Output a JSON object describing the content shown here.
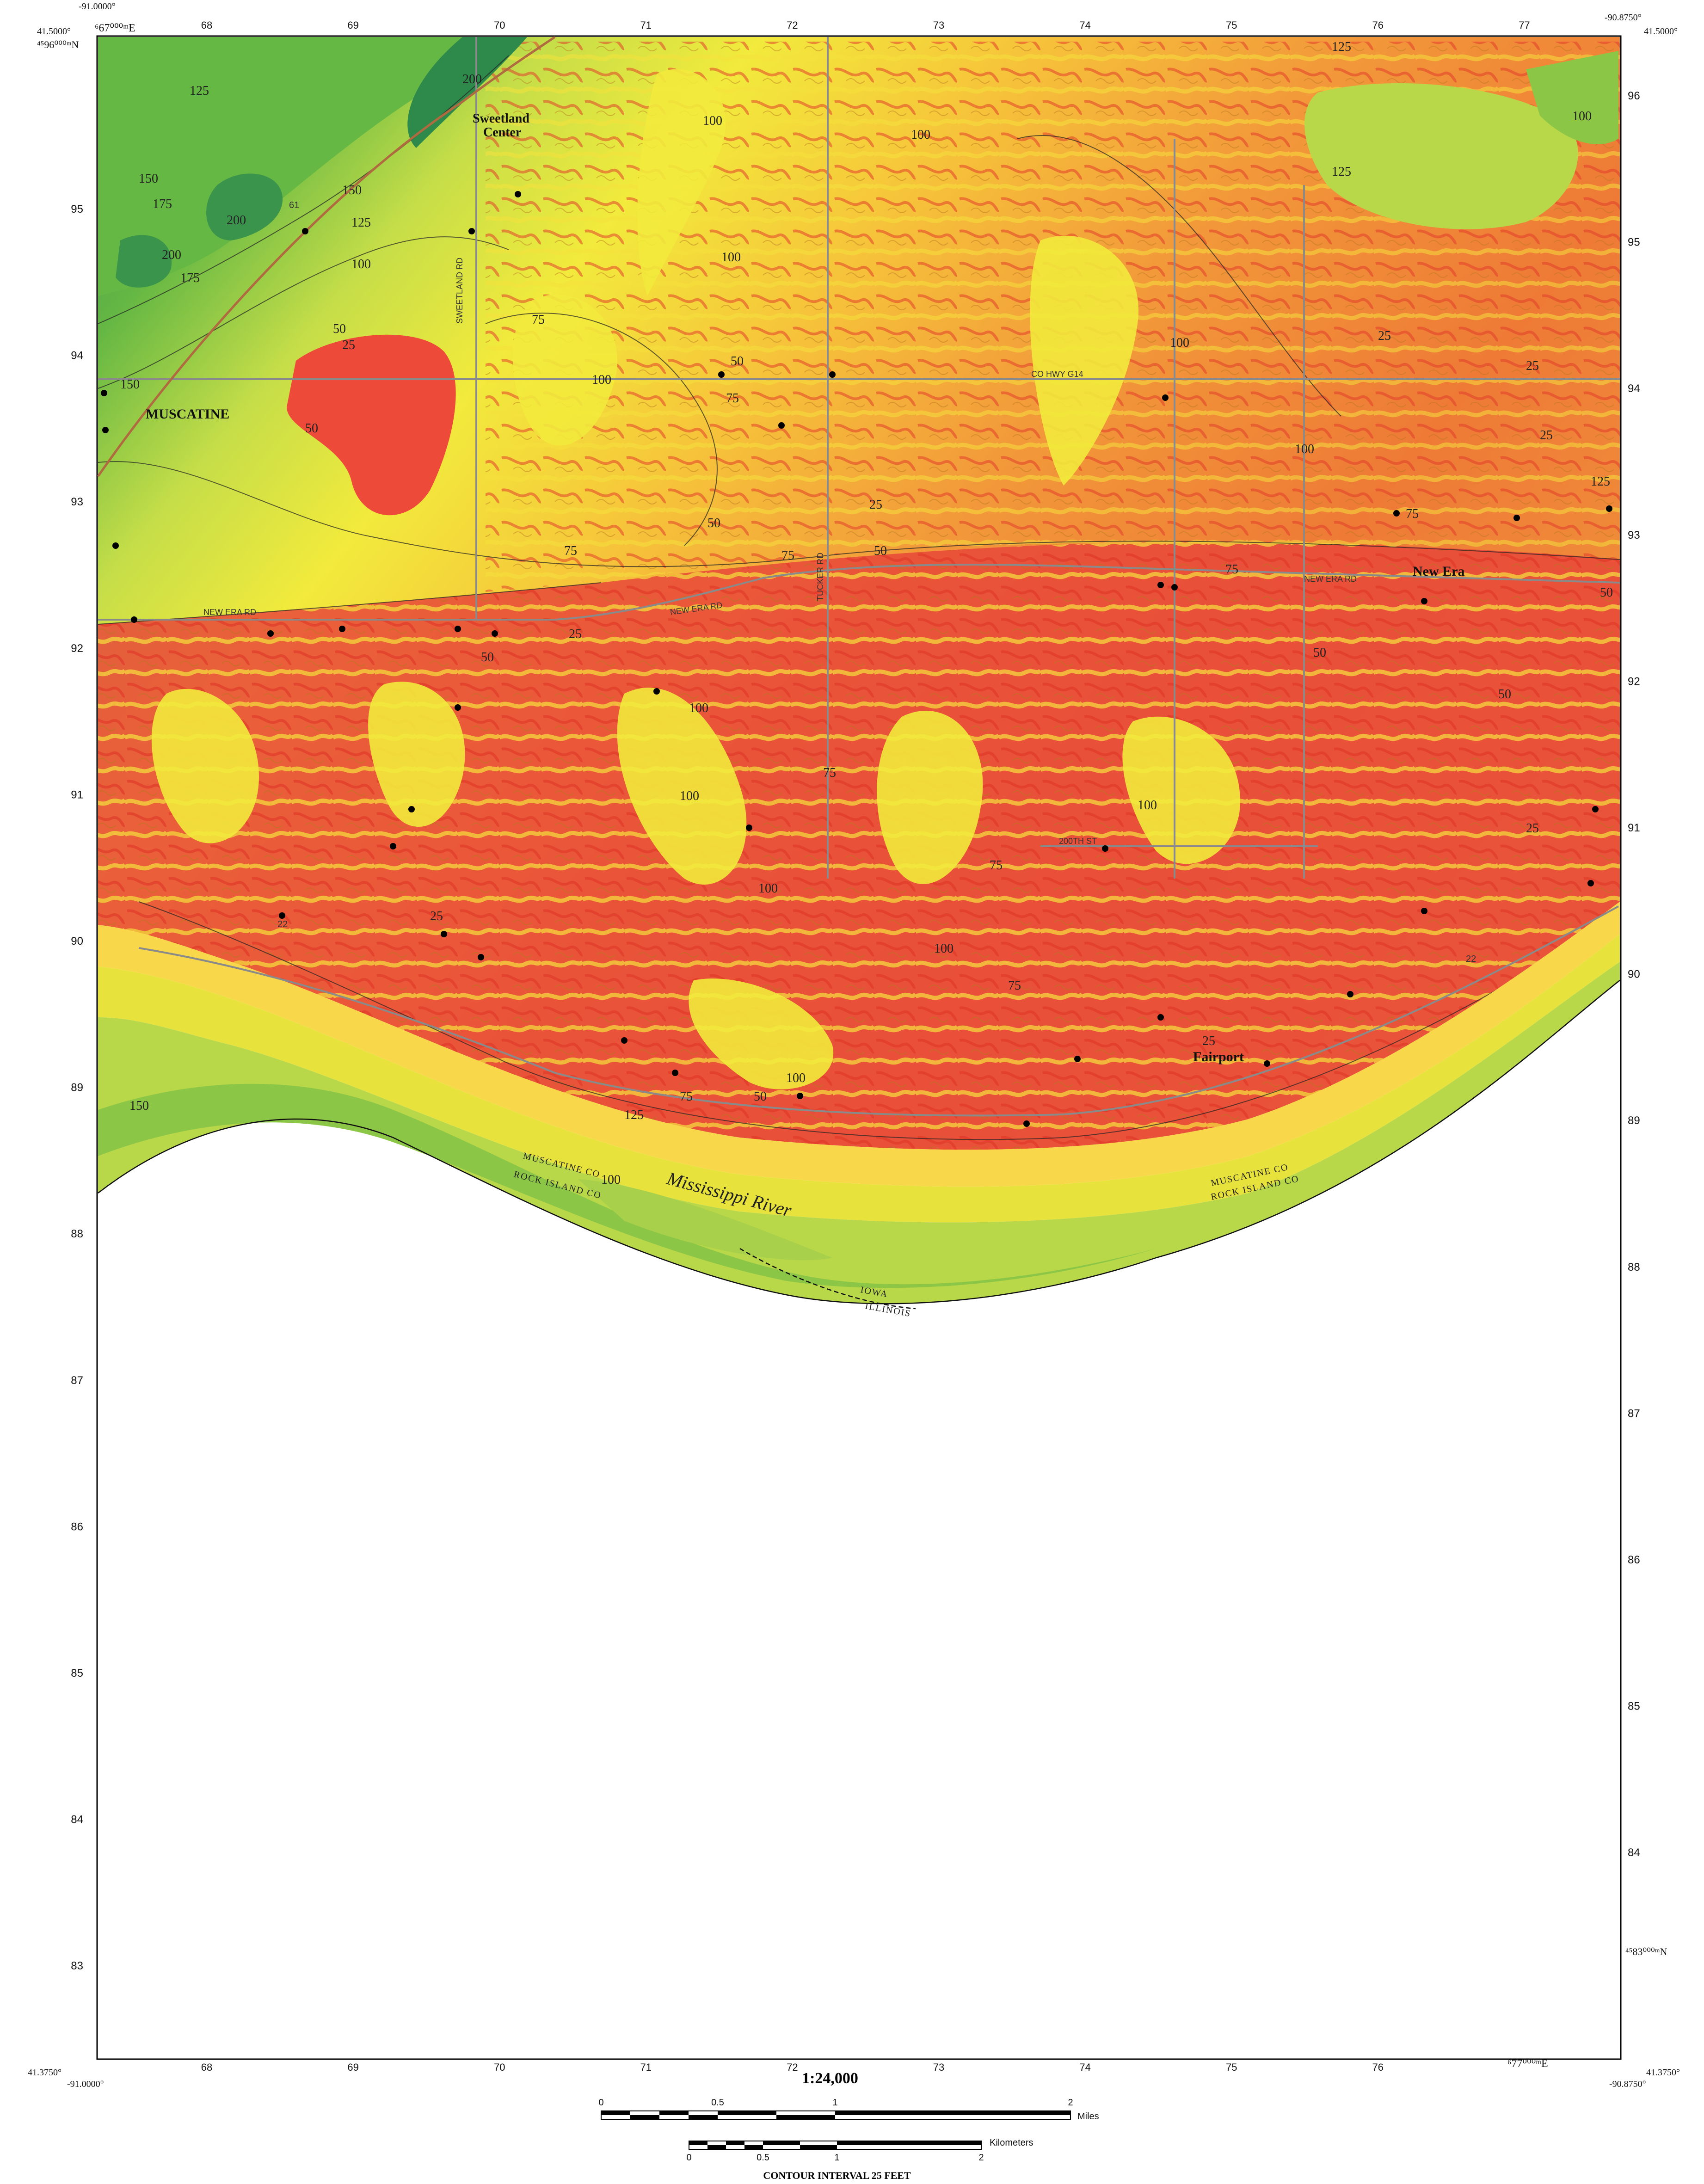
{
  "corner_coords": {
    "top_left_lon": "-91.0000°",
    "top_left_lat": "41.5000°",
    "top_right_lon": "-90.8750°",
    "top_right_lat": "41.5000°",
    "bottom_left_lat": "41.3750°",
    "bottom_left_lon": "-91.0000°",
    "bottom_right_lat": "41.3750°",
    "bottom_right_lon": "-90.8750°"
  },
  "utm": {
    "top_left_easting": "⁶67⁰⁰⁰ᵐE",
    "top_left_northing": "⁴⁵96⁰⁰⁰ᵐN",
    "bottom_right_easting": "⁶77⁰⁰⁰ᵐE",
    "bottom_right_northing": "⁴⁵83⁰⁰⁰ᵐN",
    "easting_ticks": [
      "68",
      "69",
      "70",
      "71",
      "72",
      "73",
      "74",
      "75",
      "76",
      "77"
    ],
    "bottom_easting_ticks": [
      "68",
      "69",
      "70",
      "71",
      "72",
      "73",
      "74",
      "75",
      "76"
    ],
    "left_northing_ticks": [
      "95",
      "94",
      "93",
      "92",
      "91",
      "90",
      "89",
      "88",
      "87",
      "86",
      "85",
      "84",
      "83"
    ],
    "right_northing_ticks": [
      "96",
      "95",
      "94",
      "93",
      "92",
      "91",
      "90",
      "89",
      "88",
      "87",
      "86",
      "85",
      "84"
    ]
  },
  "places": {
    "muscatine": "MUSCATINE",
    "sweetland": "Sweetland",
    "sweetland_center": "Center",
    "new_era": "New Era",
    "fairport": "Fairport"
  },
  "water": {
    "river": "Mississippi River"
  },
  "boundaries": {
    "county_north_left": "MUSCATINE CO",
    "county_south_left": "ROCK ISLAND CO",
    "county_north_right": "MUSCATINE CO",
    "county_south_right": "ROCK ISLAND CO",
    "state_north": "IOWA",
    "state_south": "ILLINOIS"
  },
  "roads": {
    "new_era_rd_w": "NEW ERA RD",
    "new_era_rd_c": "NEW ERA RD",
    "new_era_rd_e": "NEW ERA RD",
    "co_hwy_g14": "CO HWY G14",
    "st_200th": "200TH ST",
    "tucker_rd": "TUCKER RD",
    "sweetland_rd": "SWEETLAND RD",
    "us_61": "61",
    "hwy_22_w": "22",
    "hwy_22_e": "22"
  },
  "contour_labels": {
    "l200a": "200",
    "l200b": "200",
    "l200c": "200",
    "l175a": "175",
    "l175b": "175",
    "l150a": "150",
    "l150b": "150",
    "l150c": "150",
    "l150d": "150",
    "l125a": "125",
    "l125b": "125",
    "l125c": "125",
    "l125d": "125",
    "l125e": "125",
    "l125f": "125",
    "l100a": "100",
    "l100b": "100",
    "l100c": "100",
    "l100d": "100",
    "l100e": "100",
    "l100f": "100",
    "l100g": "100",
    "l100h": "100",
    "l100i": "100",
    "l100j": "100",
    "l100k": "100",
    "l100l": "100",
    "l100m": "100",
    "l100n": "100",
    "l100o": "100",
    "l75a": "75",
    "l75b": "75",
    "l75c": "75",
    "l75d": "75",
    "l75e": "75",
    "l75f": "75",
    "l75g": "75",
    "l75h": "75",
    "l75i": "75",
    "l75j": "75",
    "l50a": "50",
    "l50b": "50",
    "l50c": "50",
    "l50d": "50",
    "l50e": "50",
    "l50f": "50",
    "l50g": "50",
    "l50h": "50",
    "l50i": "50",
    "l50j": "50",
    "l25a": "25",
    "l25b": "25",
    "l25c": "25",
    "l25d": "25",
    "l25e": "25",
    "l25f": "25",
    "l25g": "25",
    "l25h": "25",
    "l25i": "25"
  },
  "scale": {
    "ratio": "1:24,000",
    "miles_unit": "Miles",
    "km_unit": "Kilometers",
    "mile_ticks": [
      "0",
      "0.5",
      "1",
      "2"
    ],
    "km_ticks": [
      "0",
      "0.5",
      "1",
      "2"
    ],
    "contour_interval": "CONTOUR INTERVAL 25 FEET"
  },
  "colors": {
    "upland_green_dark": "#2e8a4a",
    "green_mid": "#66b844",
    "green_light": "#a8d04a",
    "yellow_green": "#d8e34a",
    "yellow": "#f2ea3c",
    "yellow_orange": "#f6c43a",
    "orange": "#f29a3a",
    "red_orange": "#ee6a34",
    "red": "#e83a2e",
    "floodplain_gold": "#f8d84a"
  }
}
